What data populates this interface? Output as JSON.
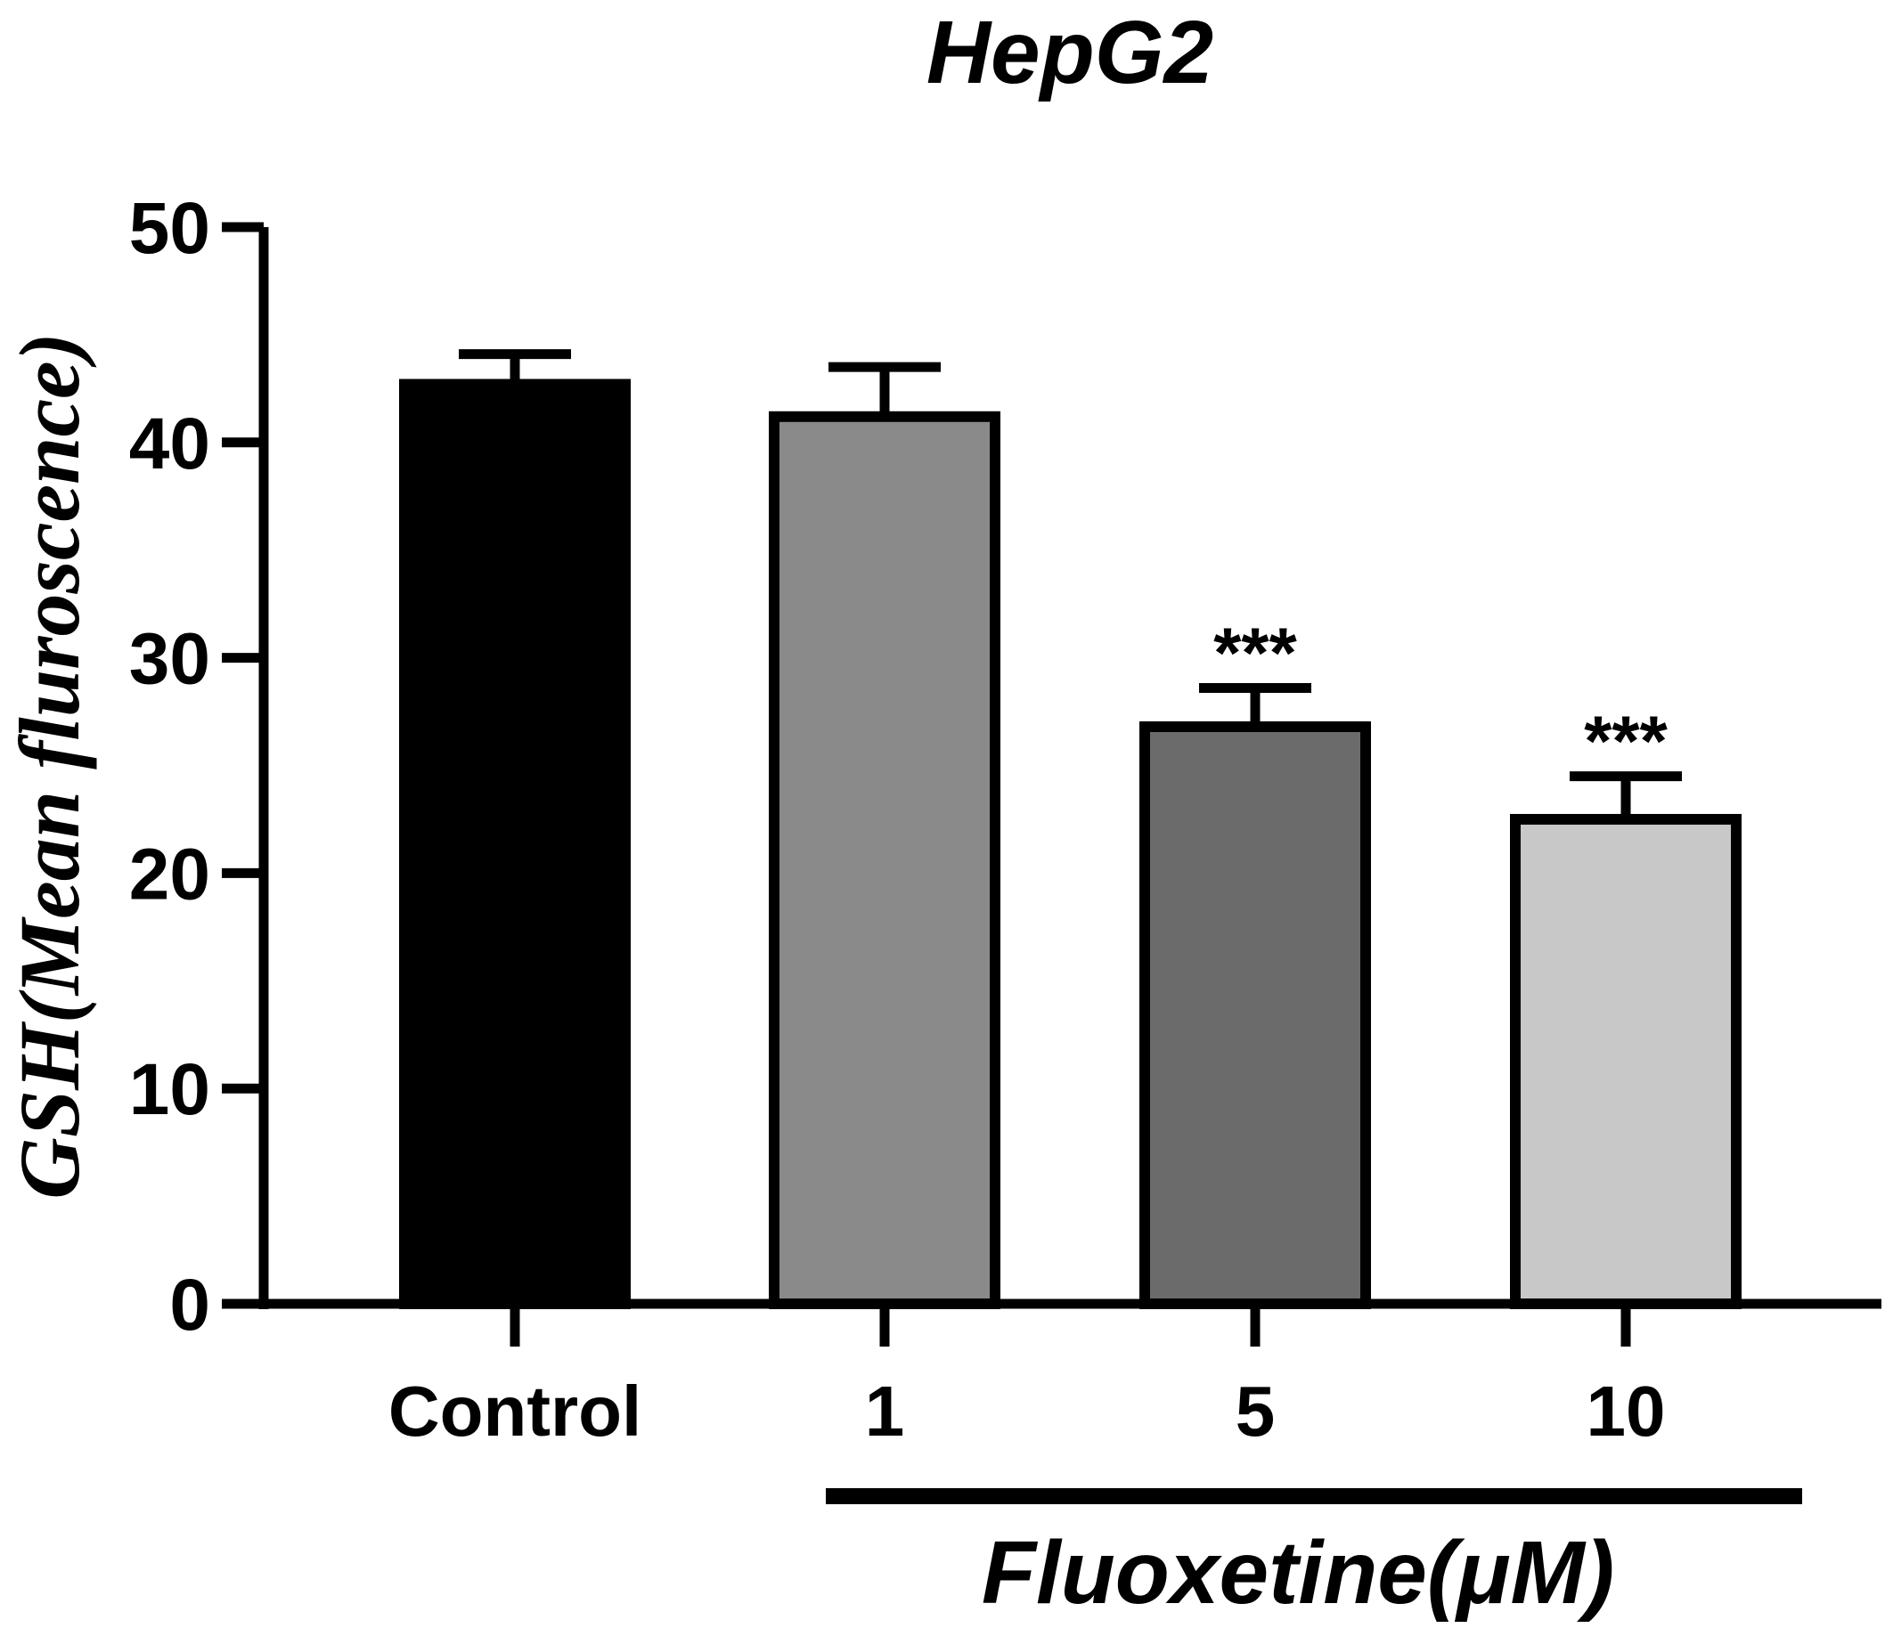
{
  "chart_data": {
    "type": "bar",
    "title": "HepG2",
    "ylabel": "GSH(Mean fluroscence)",
    "group_label": "Fluoxetine(μM)",
    "ylim": [
      0,
      50
    ],
    "yticks": [
      "0",
      "10",
      "20",
      "30",
      "40",
      "50"
    ],
    "grid": false,
    "categories": [
      "Control",
      "1",
      "5",
      "10"
    ],
    "values": [
      42.7,
      41.2,
      26.8,
      22.5
    ],
    "errors": [
      1.4,
      2.3,
      1.8,
      2.0
    ],
    "annotations": [
      "",
      "",
      "***",
      "***"
    ],
    "colors": [
      "#000000",
      "#8a8a8a",
      "#6b6b6b",
      "#c8c8c8"
    ]
  }
}
